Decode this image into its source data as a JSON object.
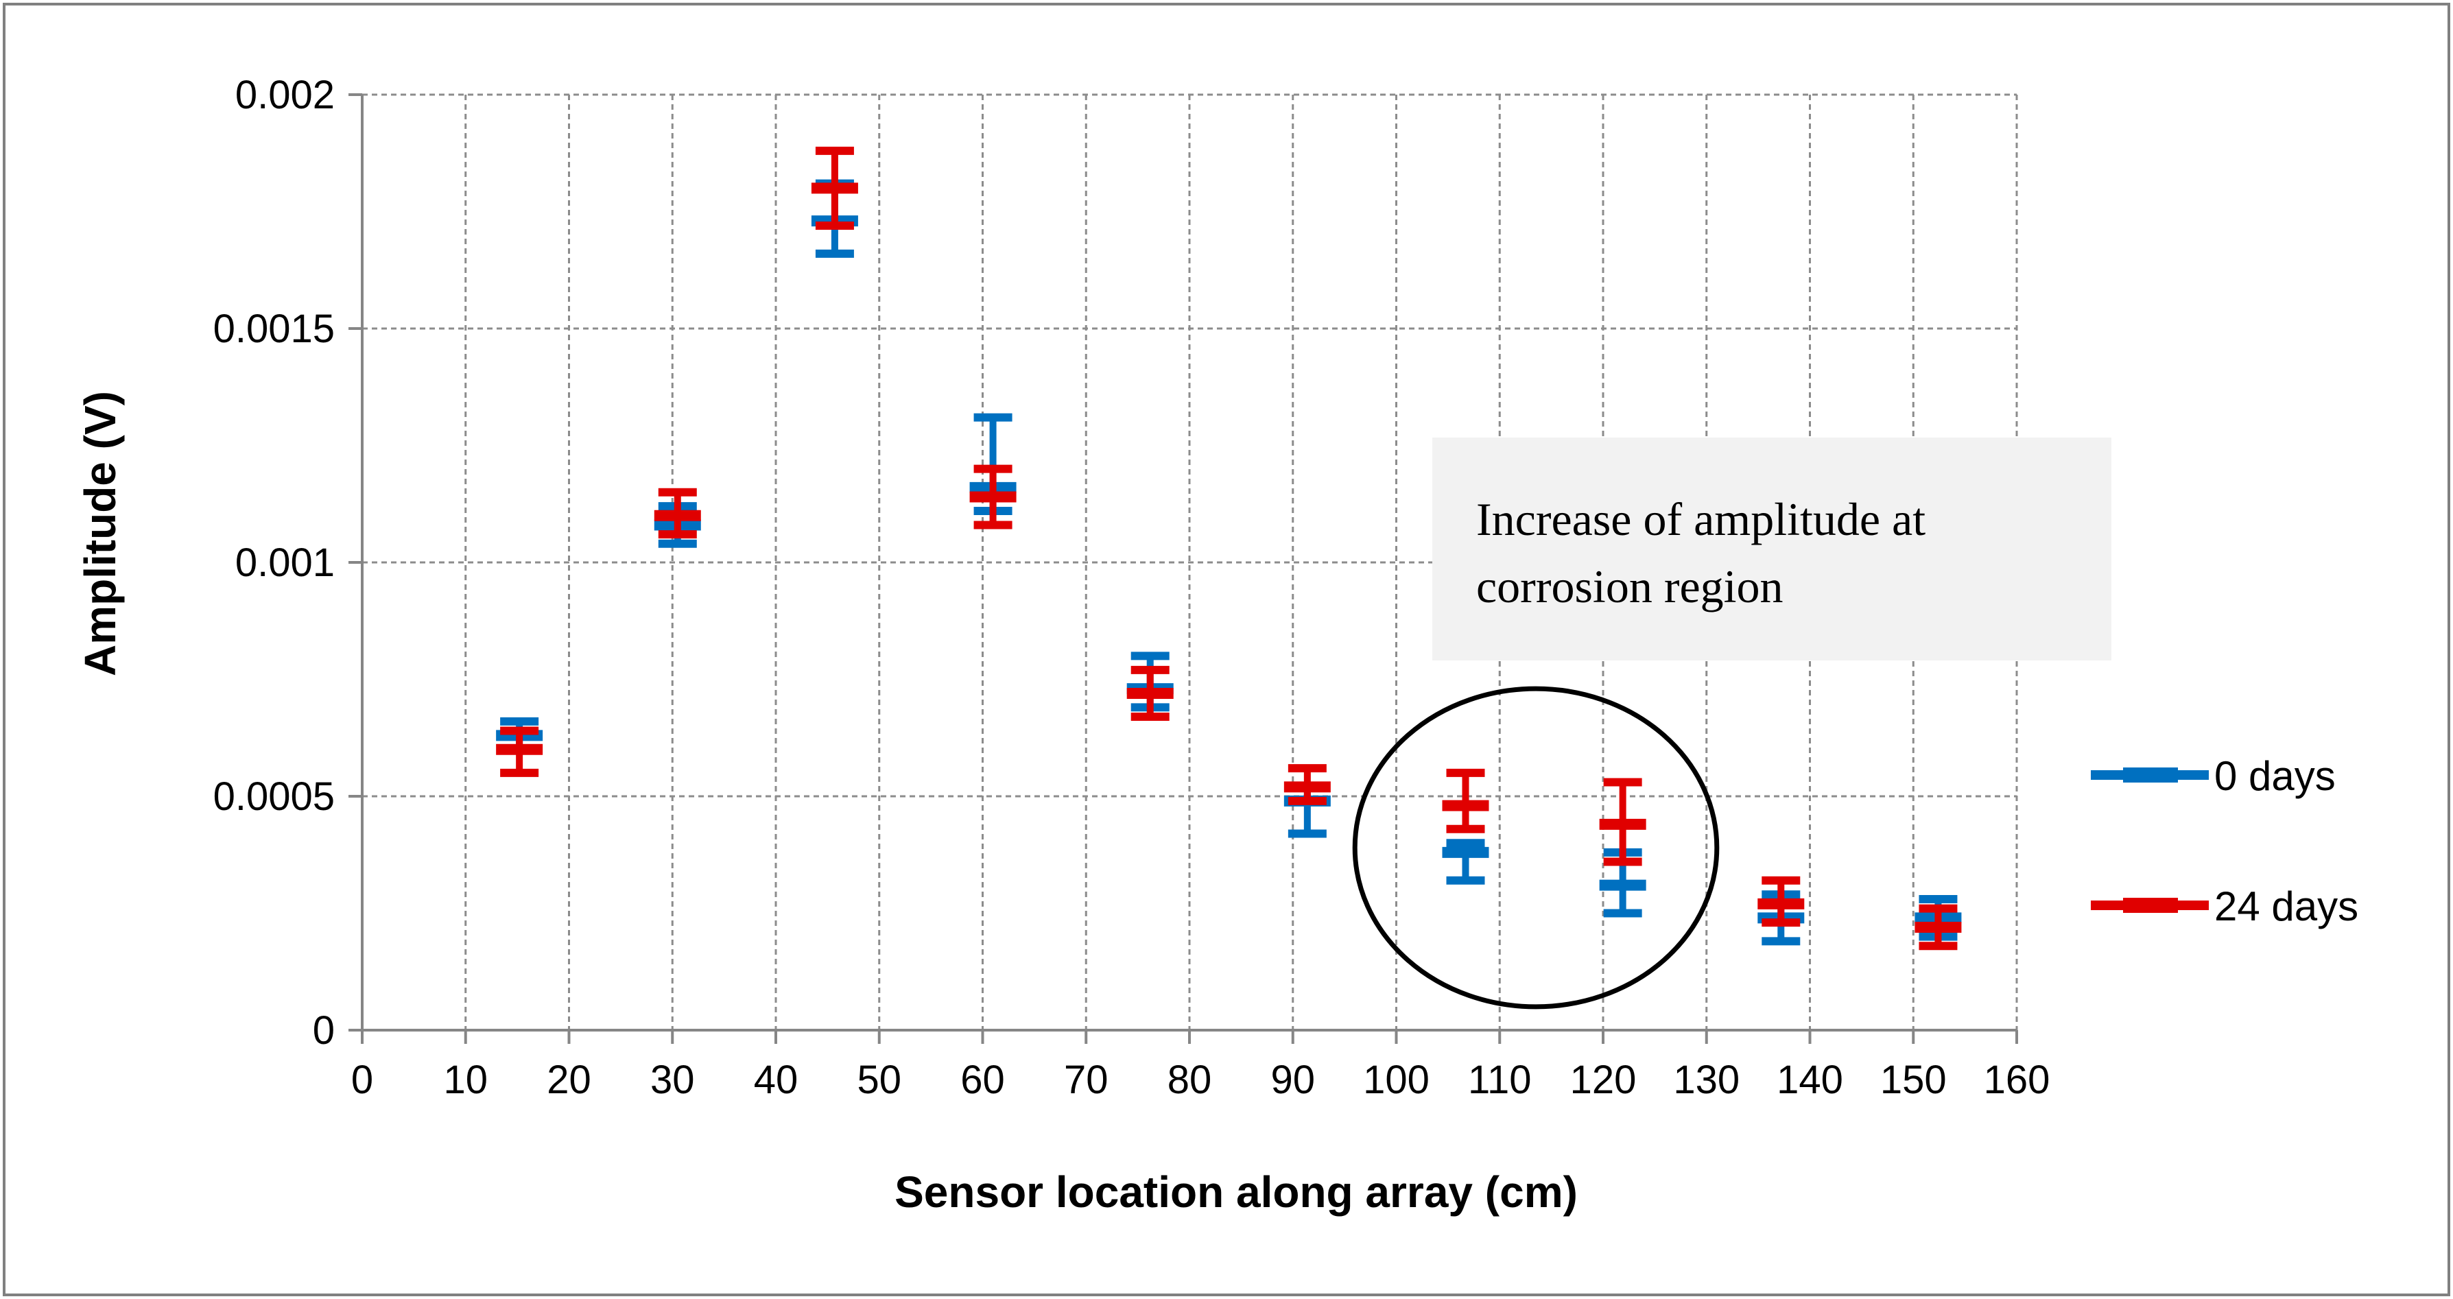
{
  "chart_data": {
    "type": "scatter",
    "title": "",
    "xlabel": "Sensor location along array (cm)",
    "ylabel": "Amplitude (V)",
    "xlim": [
      0,
      160
    ],
    "ylim": [
      0,
      0.002
    ],
    "x_ticks": [
      0,
      10,
      20,
      30,
      40,
      50,
      60,
      70,
      80,
      90,
      100,
      110,
      120,
      130,
      140,
      150,
      160
    ],
    "y_ticks": [
      0,
      0.0005,
      0.001,
      0.0015,
      0.002
    ],
    "x_tick_labels": [
      "0",
      "10",
      "20",
      "30",
      "40",
      "50",
      "60",
      "70",
      "80",
      "90",
      "100",
      "110",
      "120",
      "130",
      "140",
      "150",
      "160"
    ],
    "y_tick_labels": [
      "0",
      "0.0005",
      "0.001",
      "0.0015",
      "0.002"
    ],
    "grid": true,
    "legend_position": "right",
    "series": [
      {
        "name": "0 days",
        "color": "#0070C0",
        "points": [
          {
            "x": 15.2,
            "y": 0.00063,
            "low": 0.0006,
            "high": 0.00066
          },
          {
            "x": 30.5,
            "y": 0.00108,
            "low": 0.00104,
            "high": 0.00112
          },
          {
            "x": 45.7,
            "y": 0.00173,
            "low": 0.00166,
            "high": 0.00181
          },
          {
            "x": 61.0,
            "y": 0.00116,
            "low": 0.00111,
            "high": 0.00131
          },
          {
            "x": 76.2,
            "y": 0.00073,
            "low": 0.00069,
            "high": 0.0008
          },
          {
            "x": 91.4,
            "y": 0.00049,
            "low": 0.00042,
            "high": 0.00052
          },
          {
            "x": 106.7,
            "y": 0.00038,
            "low": 0.00032,
            "high": 0.0004
          },
          {
            "x": 121.9,
            "y": 0.00031,
            "low": 0.00025,
            "high": 0.00038
          },
          {
            "x": 137.2,
            "y": 0.00024,
            "low": 0.00019,
            "high": 0.00029
          },
          {
            "x": 152.4,
            "y": 0.00024,
            "low": 0.0002,
            "high": 0.00028
          }
        ]
      },
      {
        "name": "24 days",
        "color": "#E00000",
        "points": [
          {
            "x": 15.2,
            "y": 0.0006,
            "low": 0.00055,
            "high": 0.00064
          },
          {
            "x": 30.5,
            "y": 0.0011,
            "low": 0.00106,
            "high": 0.00115
          },
          {
            "x": 45.7,
            "y": 0.0018,
            "low": 0.00172,
            "high": 0.00188
          },
          {
            "x": 61.0,
            "y": 0.00114,
            "low": 0.00108,
            "high": 0.0012
          },
          {
            "x": 76.2,
            "y": 0.00072,
            "low": 0.00067,
            "high": 0.00077
          },
          {
            "x": 91.4,
            "y": 0.00052,
            "low": 0.00049,
            "high": 0.00056
          },
          {
            "x": 106.7,
            "y": 0.00048,
            "low": 0.00043,
            "high": 0.00055
          },
          {
            "x": 121.9,
            "y": 0.00044,
            "low": 0.00036,
            "high": 0.00053
          },
          {
            "x": 137.2,
            "y": 0.00027,
            "low": 0.00023,
            "high": 0.00032
          },
          {
            "x": 152.4,
            "y": 0.00022,
            "low": 0.00018,
            "high": 0.00026
          }
        ]
      }
    ],
    "annotation": {
      "text_lines": [
        "Increase of amplitude at",
        "corrosion region"
      ],
      "ellipse_center": {
        "x": 113.5,
        "y": 0.00039
      },
      "ellipse_radii": {
        "x": 17.5,
        "y": 0.00034
      }
    }
  }
}
